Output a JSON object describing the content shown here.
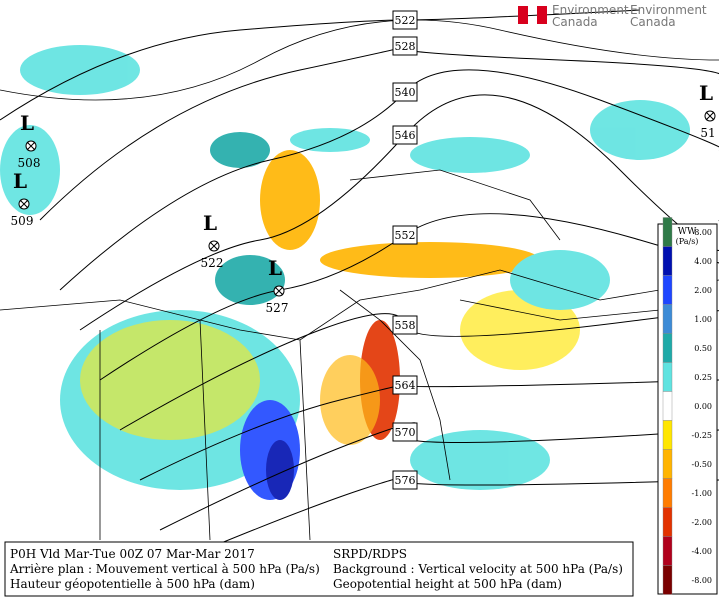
{
  "header": {
    "brand_fr": "Environment",
    "brand_fr2": "Canada",
    "brand_en": "Environment",
    "brand_en2": "Canada"
  },
  "contours": [
    "522",
    "528",
    "540",
    "546",
    "552",
    "558",
    "564",
    "570",
    "576"
  ],
  "lows": [
    {
      "symbol": "L",
      "value": "508"
    },
    {
      "symbol": "L",
      "value": "509"
    },
    {
      "symbol": "L",
      "value": "522"
    },
    {
      "symbol": "L",
      "value": "527"
    },
    {
      "symbol": "L",
      "value": "51"
    }
  ],
  "legend": {
    "title": "WW",
    "unit": "(Pa/s)",
    "entries": [
      {
        "label": "8.00",
        "color": "#2f7a48"
      },
      {
        "label": "4.00",
        "color": "#0010b0"
      },
      {
        "label": "2.00",
        "color": "#1e46ff"
      },
      {
        "label": "1.00",
        "color": "#3d8bd6"
      },
      {
        "label": "0.50",
        "color": "#1faaa8"
      },
      {
        "label": "0.25",
        "color": "#5fe3e0"
      },
      {
        "label": "0.00",
        "color": "#ffffff"
      },
      {
        "label": "-0.25",
        "color": "#ffe600"
      },
      {
        "label": "-0.50",
        "color": "#ffb400"
      },
      {
        "label": "-1.00",
        "color": "#ff7c00"
      },
      {
        "label": "-2.00",
        "color": "#e23200"
      },
      {
        "label": "-4.00",
        "color": "#b0001c"
      },
      {
        "label": "-8.00",
        "color": "#7a0000"
      }
    ]
  },
  "caption": {
    "left": [
      "P0H Vld Mar-Tue 00Z 07 Mar-Mar 2017",
      "Arrière plan : Mouvement vertical à 500 hPa (Pa/s)",
      "Hauteur géopotentielle à 500 hPa (dam)"
    ],
    "right": [
      "SRPD/RDPS",
      "Background : Vertical velocity at 500 hPa (Pa/s)",
      "Geopotential height at 500 hPa (dam)"
    ]
  }
}
